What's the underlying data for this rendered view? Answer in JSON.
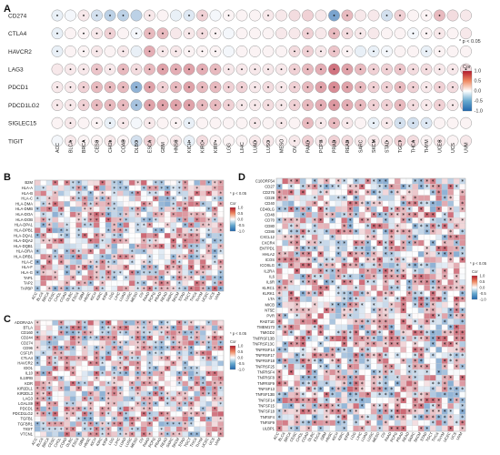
{
  "cancers": [
    "ACC",
    "BLCA",
    "BRCA",
    "CESC",
    "CHOL",
    "COAD",
    "DLBC",
    "ESCA",
    "GBM",
    "HNSC",
    "KICH",
    "KIRC",
    "KIRP",
    "LGG",
    "LIHC",
    "LUAD",
    "LUSC",
    "MESO",
    "OV",
    "PAAD",
    "PCPG",
    "PRAD",
    "READ",
    "SARC",
    "SKCM",
    "STAD",
    "TGCT",
    "THCA",
    "THYM",
    "UCEC",
    "UCS",
    "UVM"
  ],
  "colors": {
    "low": "#2166ac",
    "mid": "#ffffff",
    "high": "#b2182b",
    "grid": "#d0d0d0"
  },
  "chart_data": [
    {
      "panel": "A",
      "type": "heatmap",
      "style": "circle",
      "rows": [
        "CD274",
        "CTLA4",
        "HAVCR2",
        "LAG3",
        "PDCD1",
        "PDCD1LG2",
        "SIGLEC15",
        "TIGIT"
      ],
      "values": [
        [
          -0.1,
          -0.05,
          0.1,
          -0.2,
          -0.3,
          -0.3,
          -0.3,
          0.1,
          0.05,
          -0.1,
          -0.15,
          0.2,
          -0.05,
          0.05,
          0.05,
          0.05,
          0.1,
          0.1,
          0.15,
          0.2,
          0.1,
          -0.6,
          0.3,
          0.1,
          0.1,
          -0.2,
          0.2,
          0.05,
          0.05,
          0.3,
          0.15,
          0.1
        ],
        [
          -0.1,
          0.05,
          0.05,
          0.1,
          0.2,
          0.05,
          -0.05,
          0.3,
          0.3,
          0.1,
          0.1,
          0.15,
          0.05,
          -0.05,
          0.05,
          0.05,
          0.05,
          0.1,
          0.1,
          0.2,
          0.1,
          0.3,
          0.15,
          0.1,
          0.1,
          0.05,
          0.05,
          -0.05,
          0.05,
          0.1,
          0.05,
          0.1
        ],
        [
          -0.1,
          0.05,
          0.05,
          0.1,
          0.05,
          0.1,
          -0.1,
          0.35,
          0.1,
          0.1,
          0.05,
          0.05,
          0.05,
          -0.05,
          0.05,
          0.05,
          0.05,
          0.05,
          0.15,
          0.2,
          0.1,
          0.25,
          0.05,
          -0.1,
          -0.1,
          -0.05,
          0.05,
          0.05,
          -0.1,
          0.05,
          0.05,
          0.05
        ],
        [
          0.1,
          0.1,
          0.1,
          0.25,
          0.1,
          0.3,
          0.15,
          0.3,
          0.4,
          0.35,
          0.4,
          0.35,
          0.3,
          0.1,
          0.1,
          0.1,
          0.1,
          0.1,
          0.2,
          0.3,
          0.35,
          0.6,
          0.4,
          0.3,
          0.2,
          0.2,
          0.25,
          0.15,
          0.15,
          0.1,
          0.1,
          0.15
        ],
        [
          0.1,
          0.1,
          0.2,
          0.3,
          0.3,
          0.3,
          -0.5,
          0.4,
          0.2,
          0.3,
          0.4,
          0.3,
          0.3,
          0.2,
          0.2,
          0.1,
          0.15,
          0.1,
          0.2,
          0.3,
          0.4,
          0.5,
          0.4,
          0.3,
          0.2,
          0.2,
          0.3,
          0.2,
          0.1,
          0.2,
          0.15,
          0.2
        ],
        [
          0.1,
          0.1,
          0.2,
          0.3,
          0.3,
          0.3,
          -0.4,
          0.4,
          0.4,
          0.4,
          0.4,
          0.3,
          0.3,
          0.2,
          0.1,
          0.1,
          0.15,
          0.1,
          0.2,
          0.3,
          0.35,
          0.45,
          0.35,
          0.3,
          0.2,
          0.2,
          0.3,
          0.15,
          0.1,
          0.2,
          0.1,
          0.2
        ],
        [
          0.05,
          0.1,
          0.05,
          0.05,
          -0.1,
          0.1,
          -0.05,
          0.1,
          0.05,
          0.05,
          -0.1,
          0.05,
          0.05,
          0.05,
          0.05,
          0.1,
          0.05,
          0.1,
          0.05,
          0.3,
          0.1,
          0.3,
          0.1,
          0.05,
          -0.1,
          0.1,
          -0.2,
          -0.2,
          -0.15,
          0.05,
          0.05,
          0.05
        ],
        [
          -0.05,
          0.1,
          0.05,
          0.05,
          0.1,
          0.05,
          -0.2,
          0.2,
          0.05,
          0.1,
          -0.1,
          0.15,
          0.05,
          0.05,
          0.05,
          0.1,
          0.1,
          0.05,
          0.1,
          0.2,
          0.1,
          0.2,
          0.15,
          0.1,
          0.1,
          0.1,
          0.2,
          0.15,
          0.05,
          0.1,
          0.05,
          0.1
        ]
      ],
      "significant": [
        [
          1,
          0,
          1,
          1,
          1,
          1,
          0,
          1,
          0,
          0,
          1,
          1,
          0,
          1,
          0,
          0,
          1,
          0,
          0,
          0,
          0,
          1,
          1,
          0,
          0,
          1,
          1,
          0,
          1,
          1,
          0,
          0
        ],
        [
          1,
          0,
          1,
          1,
          1,
          0,
          1,
          1,
          1,
          0,
          1,
          1,
          1,
          0,
          0,
          0,
          0,
          0,
          0,
          1,
          0,
          1,
          1,
          1,
          0,
          0,
          0,
          1,
          1,
          1,
          0,
          0
        ],
        [
          1,
          0,
          1,
          1,
          0,
          1,
          0,
          1,
          1,
          1,
          1,
          1,
          1,
          0,
          0,
          0,
          0,
          0,
          1,
          1,
          1,
          1,
          1,
          0,
          1,
          1,
          0,
          0,
          1,
          1,
          0,
          0
        ],
        [
          0,
          1,
          1,
          1,
          1,
          1,
          1,
          1,
          1,
          1,
          1,
          1,
          1,
          1,
          1,
          1,
          1,
          1,
          1,
          1,
          1,
          1,
          1,
          1,
          1,
          1,
          1,
          1,
          1,
          1,
          1,
          1
        ],
        [
          1,
          1,
          1,
          1,
          1,
          1,
          1,
          1,
          1,
          1,
          1,
          1,
          1,
          1,
          1,
          1,
          1,
          1,
          1,
          1,
          1,
          1,
          1,
          1,
          1,
          1,
          1,
          1,
          1,
          1,
          1,
          1
        ],
        [
          1,
          1,
          1,
          1,
          1,
          1,
          1,
          1,
          1,
          1,
          1,
          1,
          1,
          1,
          1,
          1,
          1,
          1,
          1,
          1,
          1,
          1,
          1,
          1,
          1,
          1,
          1,
          1,
          1,
          1,
          1,
          1
        ],
        [
          0,
          1,
          0,
          1,
          1,
          1,
          0,
          1,
          0,
          1,
          1,
          0,
          0,
          0,
          0,
          1,
          0,
          1,
          0,
          1,
          1,
          1,
          1,
          0,
          1,
          1,
          1,
          1,
          1,
          0,
          0,
          0
        ],
        [
          0,
          1,
          1,
          1,
          1,
          1,
          1,
          1,
          0,
          1,
          1,
          1,
          1,
          0,
          0,
          1,
          1,
          0,
          1,
          1,
          1,
          1,
          1,
          0,
          1,
          1,
          1,
          1,
          0,
          1,
          0,
          0
        ]
      ],
      "legend": {
        "title": "Cor",
        "ticks": [
          "1.0",
          "0.5",
          "0.0",
          "-0.5",
          "-1.0"
        ],
        "range": [
          -1,
          1
        ],
        "note": "* p < 0.05"
      }
    },
    {
      "panel": "B",
      "type": "heatmap",
      "style": "square",
      "rows": [
        "B2M",
        "HLA-A",
        "HLA-B",
        "HLA-C",
        "HLA-DMA",
        "HLA-DMB",
        "HLA-DOA",
        "HLA-DOB",
        "HLA-DPA1",
        "HLA-DPB1",
        "HLA-DQA1",
        "HLA-DQA2",
        "HLA-DQB1",
        "HLA-DRA",
        "HLA-DRB1",
        "HLA-E",
        "HLA-F",
        "HLA-G",
        "TAP1",
        "TAP2",
        "TAPBP"
      ],
      "legend": {
        "title": "Cor",
        "ticks": [
          "1.0",
          "0.5",
          "0.0",
          "-0.5",
          "-1.0"
        ],
        "range": [
          -1,
          1
        ],
        "note": "* p < 0.05"
      }
    },
    {
      "panel": "C",
      "type": "heatmap",
      "style": "square",
      "rows": [
        "ADORA2A",
        "BTLA",
        "CD160",
        "CD244",
        "CD274",
        "CD96",
        "CSF1R",
        "CTLA4",
        "HAVCR2",
        "IDO1",
        "IL10",
        "IL10RB",
        "KDR",
        "KIR2DL1",
        "KIR2DL3",
        "LAG3",
        "LGALS9",
        "PDCD1",
        "PDCD1LG2",
        "TGFB1",
        "TGFBR1",
        "TIGIT",
        "VTCN1"
      ],
      "legend": {
        "title": "Cor",
        "ticks": [
          "1.0",
          "0.5",
          "0.0",
          "-0.5",
          "-1.0"
        ],
        "range": [
          -1,
          1
        ],
        "note": "* p < 0.05"
      }
    },
    {
      "panel": "D",
      "type": "heatmap",
      "style": "square",
      "rows": [
        "C10ORF54",
        "CD27",
        "CD276",
        "CD28",
        "CD40",
        "CD40LG",
        "CD48",
        "CD70",
        "CD80",
        "CD86",
        "CXCL12",
        "CXCR4",
        "ENTPD1",
        "HHLA2",
        "ICOS",
        "ICOSLG",
        "IL2RA",
        "IL6",
        "IL6R",
        "KLRC1",
        "KLRK1",
        "LTA",
        "MICB",
        "NT5E",
        "PVR",
        "RAET1E",
        "TMEM173",
        "TMIGD2",
        "TNFRSF13B",
        "TNFRSF13C",
        "TNFRSF14",
        "TNFRSF17",
        "TNFRSF18",
        "TNFRSF25",
        "TNFRSF4",
        "TNFRSF8",
        "TNFRSF9",
        "TNFSF13",
        "TNFSF13B",
        "TNFSF14",
        "TNFSF15",
        "TNFSF18",
        "TNFSF4",
        "TNFSF9",
        "ULBP1"
      ],
      "legend": {
        "title": "Cor",
        "ticks": [
          "1.0",
          "0.5",
          "0.0",
          "-0.5",
          "-1.0"
        ],
        "range": [
          -1,
          1
        ],
        "note": "* p < 0.05"
      }
    }
  ]
}
